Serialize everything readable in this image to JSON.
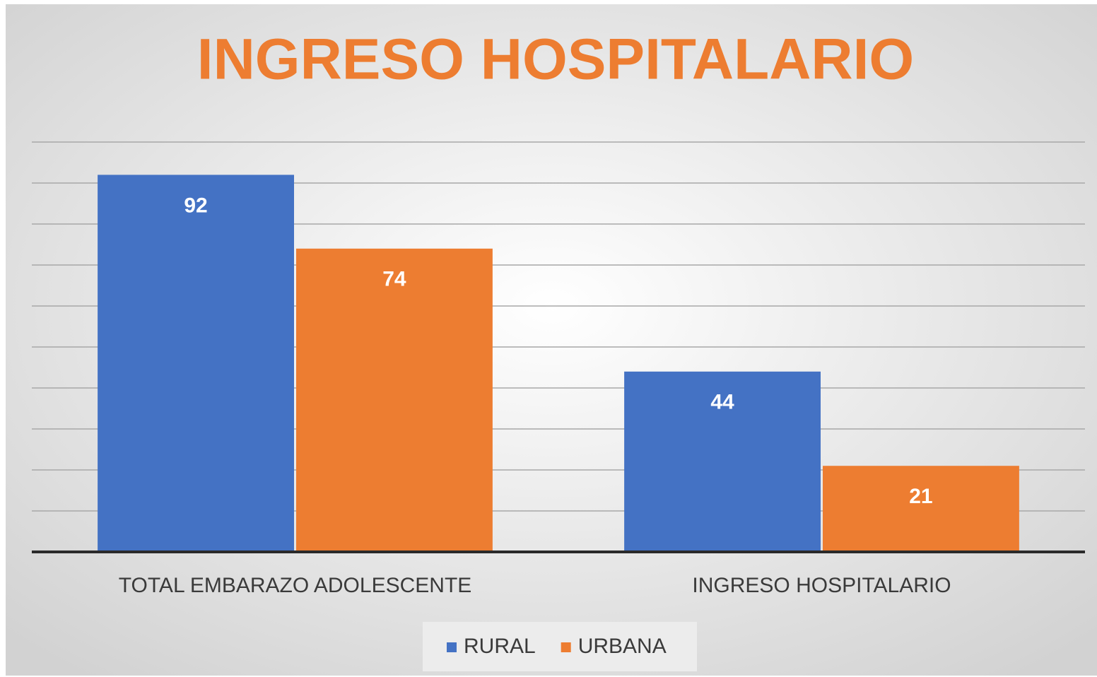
{
  "chart_data": {
    "type": "bar",
    "title": "INGRESO HOSPITALARIO",
    "categories": [
      "TOTAL EMBARAZO ADOLESCENTE",
      "INGRESO HOSPITALARIO"
    ],
    "series": [
      {
        "name": "RURAL",
        "color": "#4472c4",
        "values": [
          92,
          44
        ]
      },
      {
        "name": "URBANA",
        "color": "#ed7d31",
        "values": [
          74,
          21
        ]
      }
    ],
    "ylim": [
      0,
      100
    ],
    "yticks": [
      0,
      10,
      20,
      30,
      40,
      50,
      60,
      70,
      80,
      90,
      100
    ],
    "grid": true,
    "legend": "bottom"
  }
}
